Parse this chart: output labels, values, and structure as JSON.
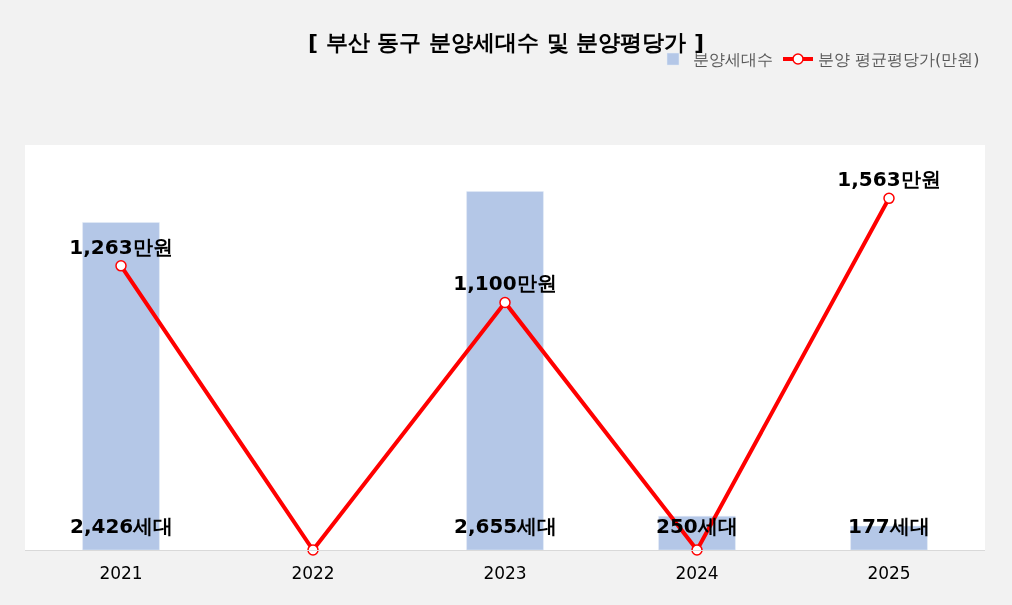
{
  "chart_data": {
    "type": "bar",
    "title": "[ 부산 동구 분양세대수 및 분양평당가 ]",
    "categories": [
      "2021",
      "2022",
      "2023",
      "2024",
      "2025"
    ],
    "series": [
      {
        "name": "분양세대수",
        "color": "#b4c7e7",
        "values": [
          2426,
          null,
          2655,
          250,
          177
        ],
        "value_labels": [
          "2,426세대",
          null,
          "2,655세대",
          "250세대",
          "177세대"
        ]
      },
      {
        "name": "분양 평균평당가(만원)",
        "type": "line",
        "axis": "y2",
        "color": "#ff0000",
        "marker": "circle",
        "values": [
          1263,
          0,
          1100,
          0,
          1563
        ],
        "value_labels": [
          "1,263만원",
          null,
          "1,100만원",
          null,
          "1,563만원"
        ]
      }
    ],
    "ylim": [
      0,
      3000
    ],
    "y2lim": [
      0,
      1800
    ],
    "tick_labels": "x",
    "legend": "top right"
  }
}
